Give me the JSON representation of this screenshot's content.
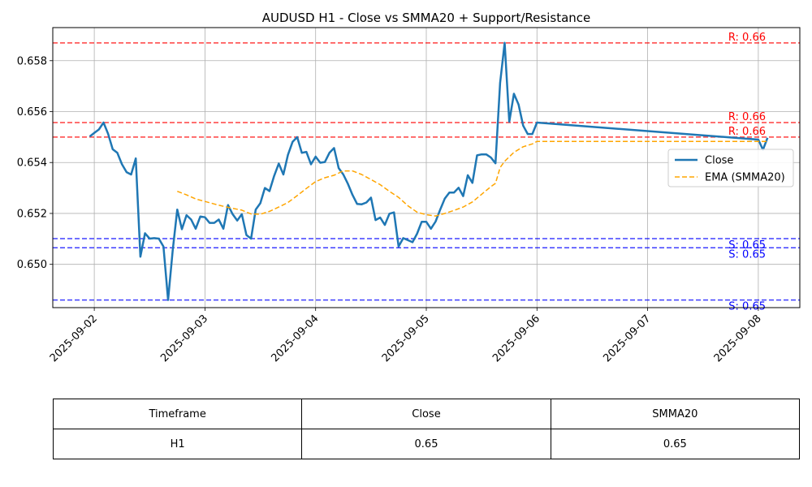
{
  "chart_data": {
    "type": "line",
    "title": "AUDUSD H1 - Close vs SMMA20 + Support/Resistance",
    "xlabel": "",
    "ylabel": "",
    "x_range": [
      "2025-09-01T15:00",
      "2025-09-08T09:00"
    ],
    "ylim": [
      0.6483,
      0.6593
    ],
    "x_ticks": [
      "2025-09-02",
      "2025-09-03",
      "2025-09-04",
      "2025-09-05",
      "2025-09-06",
      "2025-09-07",
      "2025-09-08"
    ],
    "y_ticks": [
      "0.650",
      "0.652",
      "0.654",
      "0.656",
      "0.658"
    ],
    "grid": true,
    "legend": "center-right",
    "series": [
      {
        "name": "Close",
        "color": "#1f77b4",
        "style": "solid",
        "points": [
          [
            "2025-09-01T23:00",
            0.65502
          ],
          [
            "2025-09-02T00:00",
            0.65516
          ],
          [
            "2025-09-02T01:00",
            0.6553
          ],
          [
            "2025-09-02T02:00",
            0.65557
          ],
          [
            "2025-09-02T03:00",
            0.65513
          ],
          [
            "2025-09-02T04:00",
            0.65452
          ],
          [
            "2025-09-02T05:00",
            0.65438
          ],
          [
            "2025-09-02T06:00",
            0.65393
          ],
          [
            "2025-09-02T07:00",
            0.65362
          ],
          [
            "2025-09-02T08:00",
            0.65353
          ],
          [
            "2025-09-02T09:00",
            0.65416
          ],
          [
            "2025-09-02T10:00",
            0.6503
          ],
          [
            "2025-09-02T11:00",
            0.65122
          ],
          [
            "2025-09-02T12:00",
            0.65101
          ],
          [
            "2025-09-02T13:00",
            0.65103
          ],
          [
            "2025-09-02T14:00",
            0.65101
          ],
          [
            "2025-09-02T15:00",
            0.6507
          ],
          [
            "2025-09-02T16:00",
            0.6486
          ],
          [
            "2025-09-02T17:00",
            0.65055
          ],
          [
            "2025-09-02T18:00",
            0.65215
          ],
          [
            "2025-09-02T19:00",
            0.65138
          ],
          [
            "2025-09-02T20:00",
            0.65193
          ],
          [
            "2025-09-02T21:00",
            0.65176
          ],
          [
            "2025-09-02T22:00",
            0.6514
          ],
          [
            "2025-09-02T23:00",
            0.65188
          ],
          [
            "2025-09-03T00:00",
            0.65185
          ],
          [
            "2025-09-03T01:00",
            0.65163
          ],
          [
            "2025-09-03T02:00",
            0.65163
          ],
          [
            "2025-09-03T03:00",
            0.65176
          ],
          [
            "2025-09-03T04:00",
            0.6514
          ],
          [
            "2025-09-03T05:00",
            0.65233
          ],
          [
            "2025-09-03T06:00",
            0.65197
          ],
          [
            "2025-09-03T07:00",
            0.65172
          ],
          [
            "2025-09-03T08:00",
            0.65197
          ],
          [
            "2025-09-03T09:00",
            0.65115
          ],
          [
            "2025-09-03T10:00",
            0.65101
          ],
          [
            "2025-09-03T11:00",
            0.65215
          ],
          [
            "2025-09-03T12:00",
            0.6524
          ],
          [
            "2025-09-03T13:00",
            0.653
          ],
          [
            "2025-09-03T14:00",
            0.65288
          ],
          [
            "2025-09-03T15:00",
            0.65347
          ],
          [
            "2025-09-03T16:00",
            0.65396
          ],
          [
            "2025-09-03T17:00",
            0.65353
          ],
          [
            "2025-09-03T18:00",
            0.6543
          ],
          [
            "2025-09-03T19:00",
            0.65481
          ],
          [
            "2025-09-03T20:00",
            0.655
          ],
          [
            "2025-09-03T21:00",
            0.65438
          ],
          [
            "2025-09-03T22:00",
            0.65442
          ],
          [
            "2025-09-03T23:00",
            0.65393
          ],
          [
            "2025-09-04T00:00",
            0.65423
          ],
          [
            "2025-09-04T01:00",
            0.65399
          ],
          [
            "2025-09-04T02:00",
            0.65402
          ],
          [
            "2025-09-04T03:00",
            0.65438
          ],
          [
            "2025-09-04T04:00",
            0.65457
          ],
          [
            "2025-09-04T05:00",
            0.65378
          ],
          [
            "2025-09-04T06:00",
            0.65353
          ],
          [
            "2025-09-04T07:00",
            0.65316
          ],
          [
            "2025-09-04T08:00",
            0.65273
          ],
          [
            "2025-09-04T09:00",
            0.65237
          ],
          [
            "2025-09-04T10:00",
            0.65236
          ],
          [
            "2025-09-04T11:00",
            0.65243
          ],
          [
            "2025-09-04T12:00",
            0.65262
          ],
          [
            "2025-09-04T13:00",
            0.65174
          ],
          [
            "2025-09-04T14:00",
            0.65184
          ],
          [
            "2025-09-04T15:00",
            0.65155
          ],
          [
            "2025-09-04T16:00",
            0.65199
          ],
          [
            "2025-09-04T17:00",
            0.65204
          ],
          [
            "2025-09-04T18:00",
            0.6507
          ],
          [
            "2025-09-04T19:00",
            0.65103
          ],
          [
            "2025-09-04T20:00",
            0.65095
          ],
          [
            "2025-09-04T21:00",
            0.65087
          ],
          [
            "2025-09-04T22:00",
            0.6512
          ],
          [
            "2025-09-04T23:00",
            0.65167
          ],
          [
            "2025-09-05T00:00",
            0.65167
          ],
          [
            "2025-09-05T01:00",
            0.6514
          ],
          [
            "2025-09-05T02:00",
            0.65168
          ],
          [
            "2025-09-05T03:00",
            0.65214
          ],
          [
            "2025-09-05T04:00",
            0.65258
          ],
          [
            "2025-09-05T05:00",
            0.65282
          ],
          [
            "2025-09-05T06:00",
            0.65282
          ],
          [
            "2025-09-05T07:00",
            0.65301
          ],
          [
            "2025-09-05T08:00",
            0.65268
          ],
          [
            "2025-09-05T09:00",
            0.6535
          ],
          [
            "2025-09-05T10:00",
            0.6532
          ],
          [
            "2025-09-05T11:00",
            0.65428
          ],
          [
            "2025-09-05T12:00",
            0.65432
          ],
          [
            "2025-09-05T13:00",
            0.65432
          ],
          [
            "2025-09-05T14:00",
            0.6542
          ],
          [
            "2025-09-05T15:00",
            0.65397
          ],
          [
            "2025-09-05T16:00",
            0.65713
          ],
          [
            "2025-09-05T17:00",
            0.6587
          ],
          [
            "2025-09-05T18:00",
            0.6556
          ],
          [
            "2025-09-05T19:00",
            0.6567
          ],
          [
            "2025-09-05T20:00",
            0.65628
          ],
          [
            "2025-09-05T21:00",
            0.65545
          ],
          [
            "2025-09-05T22:00",
            0.65512
          ],
          [
            "2025-09-05T23:00",
            0.65512
          ],
          [
            "2025-09-06T00:00",
            0.65557
          ],
          [
            "2025-09-08T00:00",
            0.6549
          ],
          [
            "2025-09-08T01:00",
            0.6545
          ],
          [
            "2025-09-08T02:00",
            0.65497
          ]
        ]
      },
      {
        "name": "EMA (SMMA20)",
        "color": "#ffa500",
        "style": "dashed",
        "points": [
          [
            "2025-09-02T18:00",
            0.65287
          ],
          [
            "2025-09-02T20:00",
            0.65273
          ],
          [
            "2025-09-02T22:00",
            0.65257
          ],
          [
            "2025-09-03T00:00",
            0.65247
          ],
          [
            "2025-09-03T02:00",
            0.65237
          ],
          [
            "2025-09-03T04:00",
            0.65228
          ],
          [
            "2025-09-03T06:00",
            0.6522
          ],
          [
            "2025-09-03T08:00",
            0.65213
          ],
          [
            "2025-09-03T10:00",
            0.65198
          ],
          [
            "2025-09-03T12:00",
            0.65197
          ],
          [
            "2025-09-03T14:00",
            0.65208
          ],
          [
            "2025-09-03T16:00",
            0.65225
          ],
          [
            "2025-09-03T18:00",
            0.65243
          ],
          [
            "2025-09-03T20:00",
            0.6527
          ],
          [
            "2025-09-03T22:00",
            0.65298
          ],
          [
            "2025-09-04T00:00",
            0.65325
          ],
          [
            "2025-09-04T02:00",
            0.6534
          ],
          [
            "2025-09-04T04:00",
            0.6535
          ],
          [
            "2025-09-04T06:00",
            0.65367
          ],
          [
            "2025-09-04T08:00",
            0.65367
          ],
          [
            "2025-09-04T10:00",
            0.65353
          ],
          [
            "2025-09-04T12:00",
            0.65333
          ],
          [
            "2025-09-04T14:00",
            0.65313
          ],
          [
            "2025-09-04T16:00",
            0.65287
          ],
          [
            "2025-09-04T18:00",
            0.65263
          ],
          [
            "2025-09-04T20:00",
            0.6523
          ],
          [
            "2025-09-04T22:00",
            0.65205
          ],
          [
            "2025-09-05T00:00",
            0.65195
          ],
          [
            "2025-09-05T02:00",
            0.6519
          ],
          [
            "2025-09-05T04:00",
            0.652
          ],
          [
            "2025-09-05T06:00",
            0.65212
          ],
          [
            "2025-09-05T08:00",
            0.65225
          ],
          [
            "2025-09-05T10:00",
            0.65245
          ],
          [
            "2025-09-05T12:00",
            0.65275
          ],
          [
            "2025-09-05T14:00",
            0.65305
          ],
          [
            "2025-09-05T15:00",
            0.65318
          ],
          [
            "2025-09-05T16:00",
            0.6538
          ],
          [
            "2025-09-05T17:00",
            0.65405
          ],
          [
            "2025-09-05T19:00",
            0.6544
          ],
          [
            "2025-09-05T21:00",
            0.65462
          ],
          [
            "2025-09-05T23:00",
            0.65473
          ],
          [
            "2025-09-06T00:00",
            0.65483
          ],
          [
            "2025-09-08T00:00",
            0.65483
          ],
          [
            "2025-09-08T02:00",
            0.65483
          ]
        ]
      }
    ],
    "levels": [
      {
        "kind": "resistance",
        "value": 0.6587,
        "label": "R: 0.66",
        "color": "#ff0000"
      },
      {
        "kind": "resistance",
        "value": 0.65557,
        "label": "R: 0.66",
        "color": "#ff0000"
      },
      {
        "kind": "resistance",
        "value": 0.655,
        "label": "R: 0.66",
        "color": "#ff0000"
      },
      {
        "kind": "support",
        "value": 0.65101,
        "label": "S: 0.65",
        "color": "#0000ff"
      },
      {
        "kind": "support",
        "value": 0.65065,
        "label": "S: 0.65",
        "color": "#0000ff"
      },
      {
        "kind": "support",
        "value": 0.6486,
        "label": "S: 0.65",
        "color": "#0000ff"
      }
    ]
  },
  "table": {
    "headers": [
      "Timeframe",
      "Close",
      "SMMA20"
    ],
    "rows": [
      [
        "H1",
        "0.65",
        "0.65"
      ]
    ]
  }
}
